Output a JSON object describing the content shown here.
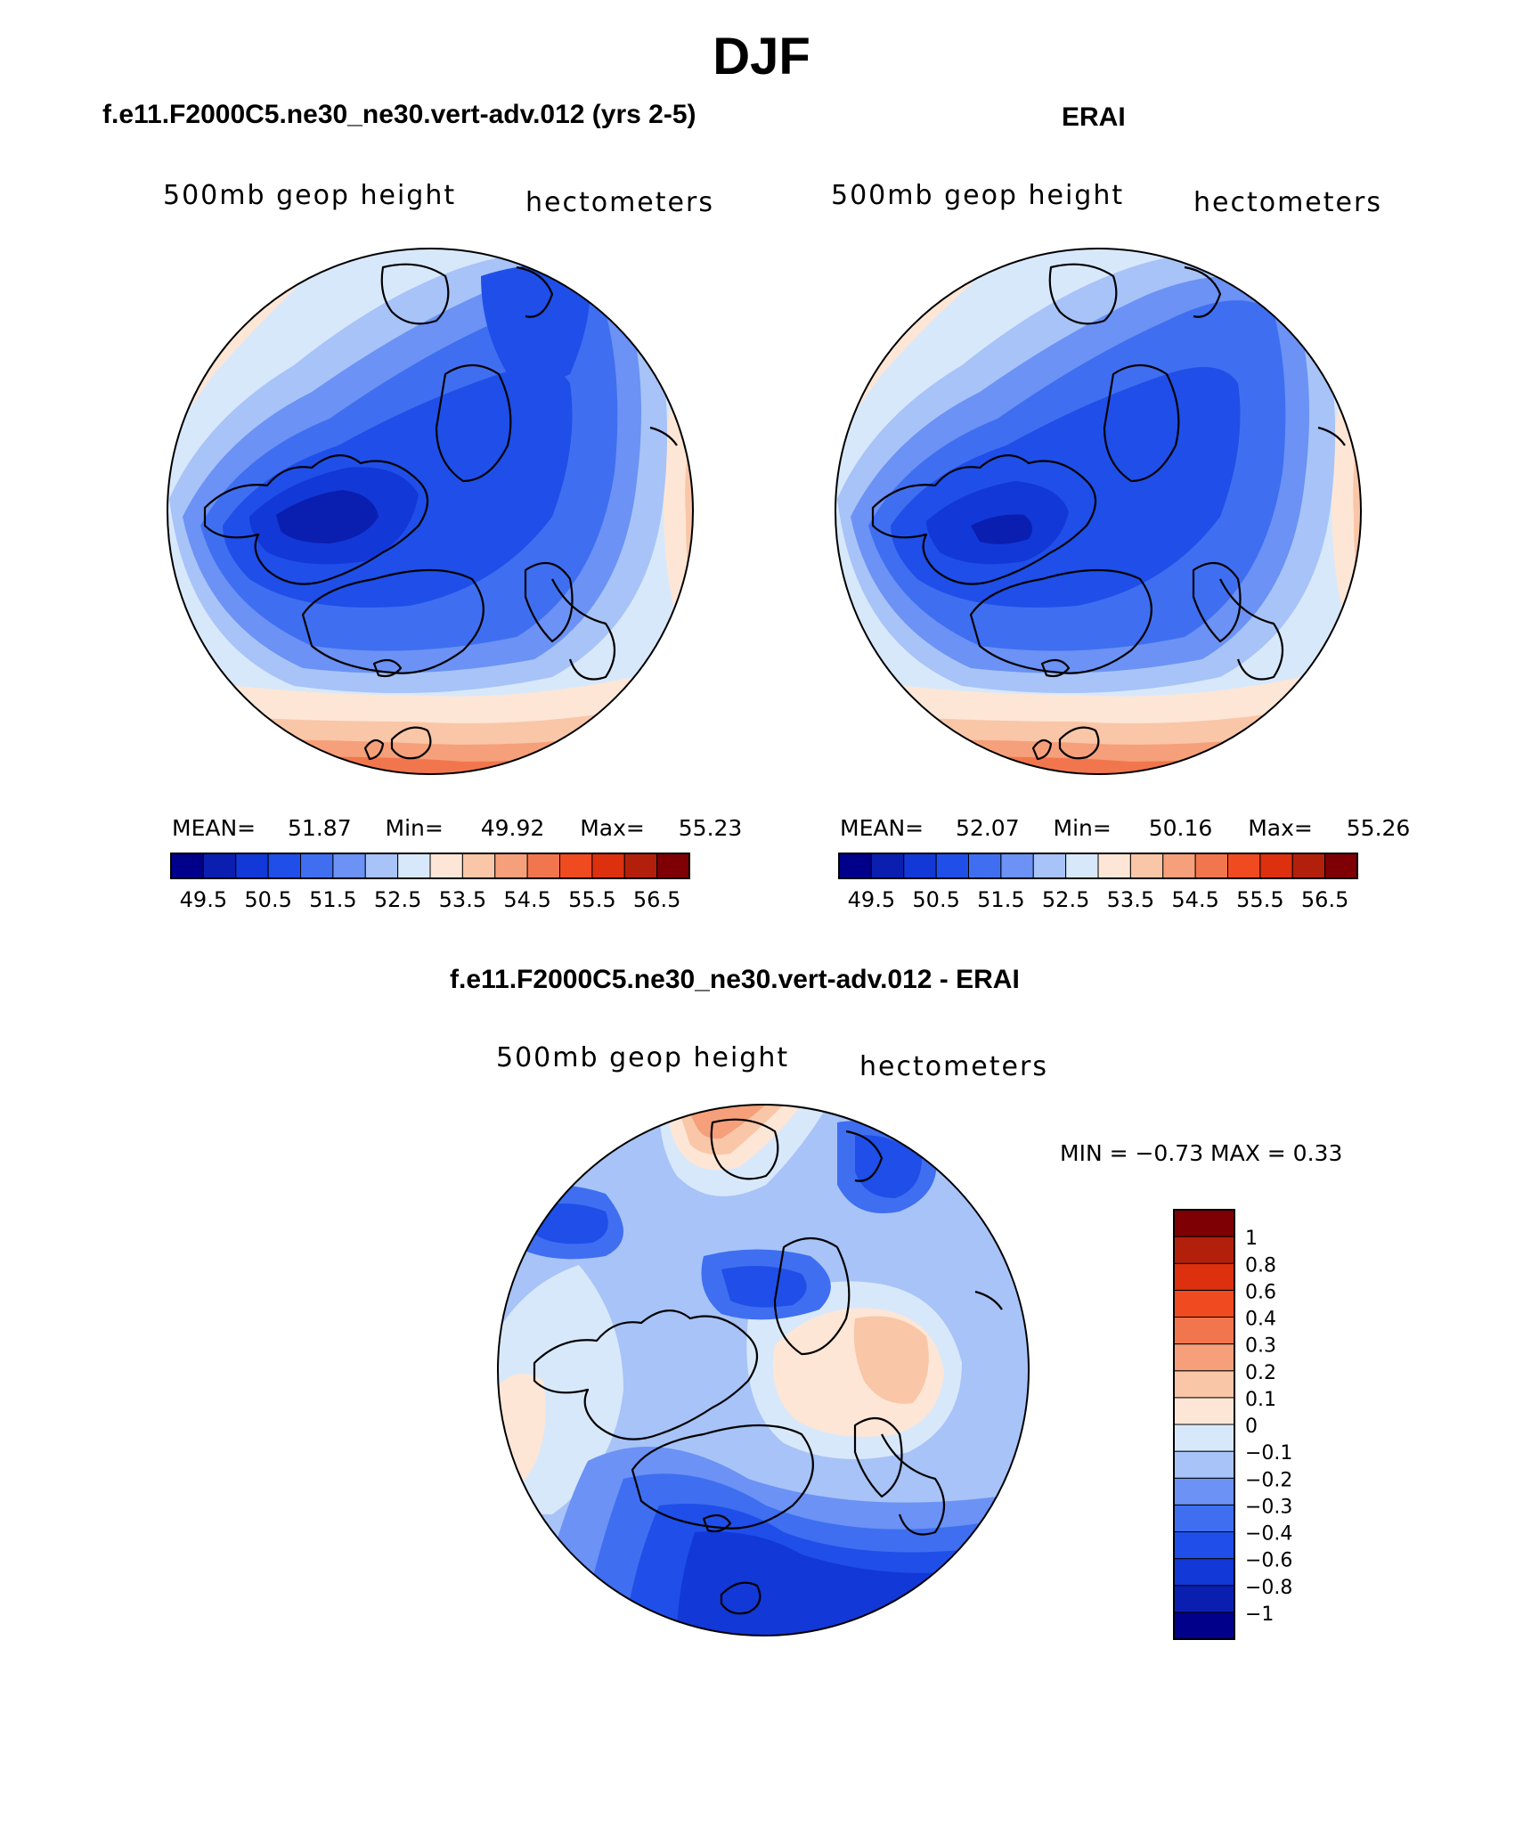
{
  "figure": {
    "title": "DJF"
  },
  "panels": [
    {
      "title": "f.e11.F2000C5.ne30_ne30.vert-adv.012 (yrs 2-5)",
      "left_label": "500mb  geop  height",
      "right_label": "hectometers",
      "stats": {
        "mean_label": "MEAN=",
        "mean": "51.87",
        "min_label": "Min=",
        "min": "49.92",
        "max_label": "Max=",
        "max": "55.23"
      }
    },
    {
      "title": "ERAI",
      "left_label": "500mb  geop  height",
      "right_label": "hectometers",
      "stats": {
        "mean_label": "MEAN=",
        "mean": "52.07",
        "min_label": "Min=",
        "min": "50.16",
        "max_label": "Max=",
        "max": "55.26"
      }
    },
    {
      "title": "f.e11.F2000C5.ne30_ne30.vert-adv.012 - ERAI",
      "left_label": "500mb  geop  height",
      "right_label": "hectometers",
      "stats_text": "MIN =   −0.73 MAX =     0.33"
    }
  ],
  "colorbar_abs": {
    "colors": [
      "#00008b",
      "#0a1fb0",
      "#1238d8",
      "#1f4fe8",
      "#3f6ff0",
      "#6b92f4",
      "#a7c3f8",
      "#d8e8fb",
      "#fde6d6",
      "#f9c6a8",
      "#f5a07a",
      "#f2764d",
      "#f04a20",
      "#dc300e",
      "#b2200b",
      "#7e0004"
    ],
    "tick_labels": [
      "49.5",
      "50.5",
      "51.5",
      "52.5",
      "53.5",
      "54.5",
      "55.5",
      "56.5"
    ]
  },
  "colorbar_diff": {
    "colors": [
      "#00008b",
      "#0a1fb0",
      "#1238d8",
      "#1f4fe8",
      "#3f6ff0",
      "#6b92f4",
      "#a7c3f8",
      "#d8e8fb",
      "#fde6d6",
      "#f9c6a8",
      "#f5a07a",
      "#f2764d",
      "#f04a20",
      "#dc300e",
      "#b2200b",
      "#7e0004"
    ],
    "tick_labels": [
      "−1",
      "−0.8",
      "−0.6",
      "−0.4",
      "−0.3",
      "−0.2",
      "−0.1",
      "0",
      "0.1",
      "0.2",
      "0.3",
      "0.4",
      "0.6",
      "0.8",
      "1"
    ]
  },
  "map_features": {
    "projection": "north polar stereographic",
    "coastlines": "black outlines"
  }
}
